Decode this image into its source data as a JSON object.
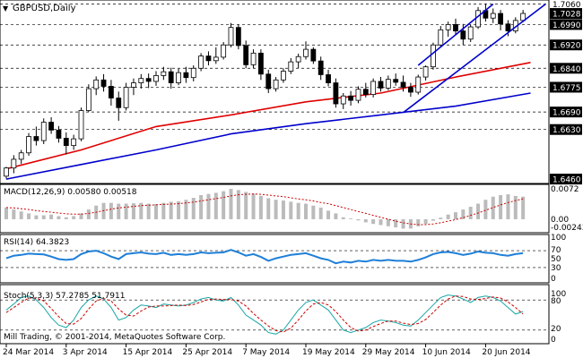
{
  "window": {
    "title": "GBPUSD,Daily",
    "copyright": "Mill Trading, © 2001-2014, MetaQuotes Software Corp."
  },
  "colors": {
    "up": "#ffffff",
    "down": "#000000",
    "ma_red": "#e00000",
    "ma_blue": "#0000cc",
    "channel": "#0000cc",
    "macd_hist": "#bbbbbb",
    "macd_signal": "#cc0000",
    "rsi": "#1e7fd8",
    "stoch_main": "#1aa6a6",
    "stoch_signal": "#cc0000",
    "price_tag": "#000000"
  },
  "chart_data": [
    {
      "type": "candlestick",
      "title": "GBPUSD,Daily",
      "ylim": [
        1.6448,
        1.7068
      ],
      "right_axis_ticks": [
        "1.7060",
        "1.7028",
        "1.6990",
        "1.6920",
        "1.6840",
        "1.6775",
        "1.6690",
        "1.6630",
        "1.6460"
      ],
      "highlighted_levels": [
        "1.7028",
        "1.6990",
        "1.6920",
        "1.6840",
        "1.6775",
        "1.6690",
        "1.6630",
        "1.6460"
      ],
      "dashed_levels": [
        1.706,
        1.699,
        1.692,
        1.684,
        1.6775,
        1.669,
        1.663
      ],
      "x_labels": [
        "24 Mar 2014",
        "3 Apr 2014",
        "15 Apr 2014",
        "25 Apr 2014",
        "7 May 2014",
        "19 May 2014",
        "29 May 2014",
        "10 Jun 2014",
        "20 Jun 2014"
      ],
      "x_label_index": [
        0,
        8,
        16,
        24,
        32,
        40,
        48,
        56,
        64
      ],
      "candles": [
        [
          1.647,
          1.6502,
          1.6462,
          1.6498
        ],
        [
          1.6498,
          1.6542,
          1.648,
          1.6528
        ],
        [
          1.6528,
          1.656,
          1.6512,
          1.655
        ],
        [
          1.655,
          1.6618,
          1.654,
          1.6606
        ],
        [
          1.6606,
          1.664,
          1.6575,
          1.6592
        ],
        [
          1.6592,
          1.6668,
          1.658,
          1.6655
        ],
        [
          1.6655,
          1.6672,
          1.6615,
          1.6628
        ],
        [
          1.6628,
          1.6642,
          1.6585,
          1.66
        ],
        [
          1.66,
          1.662,
          1.6545,
          1.6575
        ],
        [
          1.6575,
          1.6612,
          1.656,
          1.6598
        ],
        [
          1.6598,
          1.6705,
          1.659,
          1.6695
        ],
        [
          1.6695,
          1.6785,
          1.669,
          1.677
        ],
        [
          1.677,
          1.6812,
          1.6748,
          1.68
        ],
        [
          1.68,
          1.682,
          1.676,
          1.6778
        ],
        [
          1.6778,
          1.68,
          1.6712,
          1.6738
        ],
        [
          1.6738,
          1.676,
          1.666,
          1.6705
        ],
        [
          1.6705,
          1.679,
          1.6695,
          1.6775
        ],
        [
          1.6775,
          1.6805,
          1.6748,
          1.679
        ],
        [
          1.679,
          1.682,
          1.677,
          1.6805
        ],
        [
          1.6805,
          1.6822,
          1.6772,
          1.6795
        ],
        [
          1.6795,
          1.683,
          1.678,
          1.6815
        ],
        [
          1.6815,
          1.6845,
          1.68,
          1.6828
        ],
        [
          1.6828,
          1.6842,
          1.677,
          1.679
        ],
        [
          1.679,
          1.6838,
          1.6782,
          1.6825
        ],
        [
          1.6825,
          1.6845,
          1.679,
          1.6808
        ],
        [
          1.6808,
          1.685,
          1.6795,
          1.684
        ],
        [
          1.684,
          1.6892,
          1.683,
          1.6882
        ],
        [
          1.6882,
          1.6898,
          1.685,
          1.6866
        ],
        [
          1.6866,
          1.6912,
          1.6855,
          1.6878
        ],
        [
          1.6878,
          1.693,
          1.687,
          1.692
        ],
        [
          1.692,
          1.6995,
          1.6912,
          1.698
        ],
        [
          1.698,
          1.699,
          1.6905,
          1.6918
        ],
        [
          1.6918,
          1.6935,
          1.684,
          1.6852
        ],
        [
          1.6852,
          1.6905,
          1.684,
          1.6892
        ],
        [
          1.6892,
          1.6905,
          1.68,
          1.682
        ],
        [
          1.682,
          1.6835,
          1.6755,
          1.677
        ],
        [
          1.677,
          1.681,
          1.676,
          1.68
        ],
        [
          1.68,
          1.684,
          1.679,
          1.683
        ],
        [
          1.683,
          1.6875,
          1.682,
          1.6862
        ],
        [
          1.6862,
          1.689,
          1.684,
          1.688
        ],
        [
          1.688,
          1.6932,
          1.687,
          1.6905
        ],
        [
          1.6905,
          1.6912,
          1.6855,
          1.6865
        ],
        [
          1.6865,
          1.688,
          1.68,
          1.6818
        ],
        [
          1.6818,
          1.6835,
          1.6778,
          1.679
        ],
        [
          1.679,
          1.6805,
          1.6705,
          1.6718
        ],
        [
          1.6718,
          1.6755,
          1.67,
          1.6745
        ],
        [
          1.6745,
          1.6762,
          1.6712,
          1.673
        ],
        [
          1.673,
          1.6778,
          1.672,
          1.6768
        ],
        [
          1.6768,
          1.679,
          1.674,
          1.675
        ],
        [
          1.675,
          1.6805,
          1.674,
          1.6795
        ],
        [
          1.6795,
          1.681,
          1.676,
          1.6772
        ],
        [
          1.6772,
          1.6815,
          1.6765,
          1.6802
        ],
        [
          1.6802,
          1.6822,
          1.678,
          1.6792
        ],
        [
          1.6792,
          1.6815,
          1.676,
          1.6775
        ],
        [
          1.6775,
          1.679,
          1.6742,
          1.6758
        ],
        [
          1.6758,
          1.6818,
          1.675,
          1.681
        ],
        [
          1.681,
          1.685,
          1.6798,
          1.6845
        ],
        [
          1.6845,
          1.6928,
          1.6835,
          1.692
        ],
        [
          1.692,
          1.6985,
          1.6912,
          1.6972
        ],
        [
          1.6972,
          1.7,
          1.6948,
          1.699
        ],
        [
          1.699,
          1.701,
          1.6955,
          1.6968
        ],
        [
          1.6968,
          1.6992,
          1.692,
          1.694
        ],
        [
          1.694,
          1.699,
          1.693,
          1.6982
        ],
        [
          1.6982,
          1.705,
          1.6975,
          1.7038
        ],
        [
          1.7038,
          1.7062,
          1.7,
          1.7012
        ],
        [
          1.7012,
          1.7045,
          1.6995,
          1.7028
        ],
        [
          1.7028,
          1.704,
          1.697,
          1.6992
        ],
        [
          1.6992,
          1.7005,
          1.695,
          1.6968
        ],
        [
          1.6968,
          1.7015,
          1.696,
          1.7004
        ],
        [
          1.7004,
          1.704,
          1.6998,
          1.7028
        ]
      ],
      "ma_red": [
        [
          0,
          1.6495
        ],
        [
          10,
          1.656
        ],
        [
          20,
          1.664
        ],
        [
          30,
          1.668
        ],
        [
          40,
          1.6725
        ],
        [
          50,
          1.6755
        ],
        [
          60,
          1.681
        ],
        [
          70,
          1.686
        ]
      ],
      "ma_blue": [
        [
          0,
          1.646
        ],
        [
          10,
          1.651
        ],
        [
          20,
          1.656
        ],
        [
          30,
          1.6615
        ],
        [
          40,
          1.665
        ],
        [
          50,
          1.668
        ],
        [
          60,
          1.671
        ],
        [
          70,
          1.6755
        ]
      ],
      "channel_lines": [
        [
          [
            55,
            1.685
          ],
          [
            65,
            1.706
          ]
        ],
        [
          [
            53,
            1.6688
          ],
          [
            72,
            1.706
          ]
        ]
      ]
    },
    {
      "type": "line",
      "title": "MACD(12,26,9) 0.00580 0.00518",
      "ylim": [
        -0.003,
        0.0085
      ],
      "ticks": [
        "0.0072",
        "0.00",
        "-0.00243"
      ],
      "histogram": [
        0.003,
        0.0025,
        0.002,
        0.0015,
        0.001,
        0.001,
        0.0012,
        0.0008,
        0.0005,
        0.0008,
        0.0015,
        0.0025,
        0.0035,
        0.0042,
        0.0042,
        0.004,
        0.004,
        0.0041,
        0.0042,
        0.004,
        0.0039,
        0.0042,
        0.0045,
        0.0046,
        0.005,
        0.0055,
        0.0062,
        0.0065,
        0.0068,
        0.0072,
        0.0078,
        0.0075,
        0.007,
        0.0066,
        0.006,
        0.0054,
        0.005,
        0.0048,
        0.0045,
        0.0042,
        0.004,
        0.0035,
        0.003,
        0.0022,
        0.0015,
        0.0005,
        0.0002,
        -0.0003,
        -0.0008,
        -0.0012,
        -0.0015,
        -0.0018,
        -0.0021,
        -0.0024,
        -0.0024,
        -0.0018,
        -0.0012,
        -0.0004,
        0.0004,
        0.0012,
        0.0018,
        0.0025,
        0.0032,
        0.004,
        0.005,
        0.0058,
        0.0062,
        0.0064,
        0.006,
        0.0058
      ],
      "signal": [
        0.003,
        0.0029,
        0.0027,
        0.0025,
        0.0022,
        0.002,
        0.0018,
        0.0016,
        0.0014,
        0.0013,
        0.0013,
        0.0015,
        0.0018,
        0.0022,
        0.0026,
        0.0029,
        0.0031,
        0.0033,
        0.0035,
        0.0036,
        0.0037,
        0.0038,
        0.0039,
        0.004,
        0.0042,
        0.0044,
        0.0047,
        0.005,
        0.0053,
        0.0056,
        0.006,
        0.0063,
        0.0064,
        0.0065,
        0.0064,
        0.0062,
        0.006,
        0.0058,
        0.0055,
        0.0052,
        0.005,
        0.0047,
        0.0043,
        0.004,
        0.0035,
        0.003,
        0.0025,
        0.002,
        0.0015,
        0.001,
        0.0005,
        0.0,
        -0.0005,
        -0.0009,
        -0.0012,
        -0.0014,
        -0.0014,
        -0.0012,
        -0.0009,
        -0.0005,
        -0.0001,
        0.0004,
        0.001,
        0.0016,
        0.0023,
        0.003,
        0.0037,
        0.0043,
        0.0048,
        0.0052
      ]
    },
    {
      "type": "line",
      "title": "RSI(14) 64.3823",
      "ylim": [
        0,
        100
      ],
      "ticks": [
        "100",
        "70",
        "50",
        "30",
        "0"
      ],
      "levels": [
        70,
        30
      ],
      "values": [
        52,
        58,
        60,
        63,
        62,
        61,
        56,
        50,
        48,
        50,
        62,
        68,
        70,
        64,
        56,
        50,
        62,
        64,
        66,
        63,
        62,
        65,
        60,
        62,
        60,
        62,
        66,
        64,
        65,
        66,
        72,
        66,
        58,
        62,
        55,
        46,
        52,
        56,
        60,
        62,
        64,
        58,
        52,
        48,
        40,
        44,
        42,
        46,
        44,
        48,
        46,
        48,
        46,
        46,
        44,
        48,
        54,
        62,
        66,
        67,
        64,
        60,
        63,
        68,
        65,
        64,
        60,
        58,
        62,
        64
      ]
    },
    {
      "type": "line",
      "title": "Stoch(5,3,3) 57.2785 51.7911",
      "ylim": [
        0,
        100
      ],
      "ticks": [
        "100",
        "80",
        "20",
        "0"
      ],
      "levels": [
        80,
        20
      ],
      "main": [
        60,
        72,
        85,
        88,
        80,
        65,
        45,
        30,
        25,
        40,
        65,
        80,
        88,
        82,
        65,
        40,
        45,
        60,
        70,
        68,
        65,
        72,
        70,
        68,
        70,
        75,
        82,
        85,
        80,
        78,
        85,
        70,
        50,
        40,
        30,
        15,
        12,
        20,
        40,
        60,
        75,
        80,
        70,
        60,
        40,
        20,
        15,
        20,
        25,
        35,
        40,
        38,
        35,
        30,
        28,
        40,
        55,
        70,
        85,
        90,
        88,
        82,
        75,
        85,
        88,
        85,
        78,
        65,
        52,
        57
      ],
      "signal": [
        55,
        65,
        75,
        84,
        84,
        78,
        63,
        47,
        33,
        32,
        43,
        62,
        78,
        83,
        78,
        62,
        50,
        48,
        58,
        66,
        68,
        68,
        69,
        70,
        69,
        71,
        76,
        81,
        82,
        81,
        81,
        78,
        68,
        53,
        40,
        28,
        19,
        16,
        24,
        40,
        58,
        72,
        75,
        70,
        57,
        40,
        25,
        18,
        20,
        27,
        33,
        38,
        38,
        34,
        31,
        33,
        41,
        55,
        70,
        82,
        88,
        87,
        82,
        81,
        83,
        86,
        84,
        76,
        65,
        52
      ]
    }
  ]
}
